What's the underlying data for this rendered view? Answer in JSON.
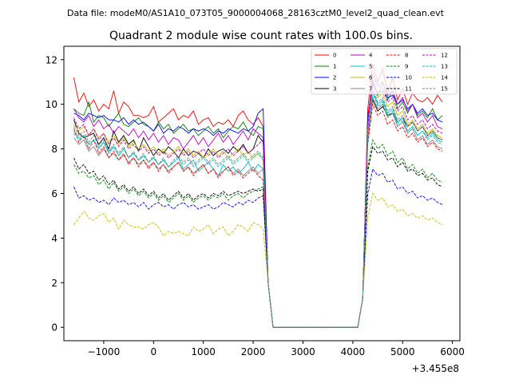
{
  "header": {
    "suptitle": "Data file: modeM0/AS1A10_073T05_9000004068_28163cztM0_level2_quad_clean.evt"
  },
  "chart_data": {
    "type": "line",
    "title": "Quadrant 2 module wise count rates with 100.0s bins.",
    "xlabel": "",
    "ylabel": "",
    "x_offset_label": "+3.455e8",
    "xlim": [
      -1800,
      6150
    ],
    "ylim": [
      -0.6,
      12.6
    ],
    "xticks": [
      -1000,
      0,
      1000,
      2000,
      3000,
      4000,
      5000,
      6000
    ],
    "xtick_labels": [
      "−1000",
      "0",
      "1000",
      "2000",
      "3000",
      "4000",
      "5000",
      "6000"
    ],
    "yticks": [
      0,
      2,
      4,
      6,
      8,
      10,
      12
    ],
    "ytick_labels": [
      "0",
      "2",
      "4",
      "6",
      "8",
      "10",
      "12"
    ],
    "legend_position": "top-right",
    "x_start": -1600,
    "x_step": 100,
    "n_points": 75,
    "gap": {
      "start_index": 40,
      "end_index": 58,
      "value": 0
    },
    "transition_values": {
      "index_39": 2.0,
      "index_58": 1.3
    },
    "series": [
      {
        "name": "0",
        "color": "#ff0000",
        "dash": "solid",
        "seg1": [
          11.2,
          10.1,
          10.5,
          9.9,
          10.2,
          9.7,
          10.0,
          9.8,
          10.6,
          9.6,
          10.1,
          9.9,
          9.5,
          9.5,
          9.4,
          9.5,
          9.9,
          9.2,
          9.4,
          9.6,
          9.8,
          9.3,
          9.5,
          9.4,
          9.7,
          9.1,
          9.3,
          9.4,
          9.0,
          9.2,
          9.1,
          9.3,
          9.0,
          9.5,
          9.7,
          9.3,
          9.1,
          9.4,
          9.0
        ],
        "seg2": [
          9.8,
          11.8,
          11.0,
          11.6,
          10.5,
          11.2,
          10.2,
          10.7,
          10.0,
          10.5,
          10.2,
          10.1,
          10.3,
          10.0,
          10.4,
          10.1
        ]
      },
      {
        "name": "1",
        "color": "#008000",
        "dash": "solid",
        "seg1": [
          9.8,
          9.6,
          9.5,
          10.1,
          9.2,
          9.5,
          9.4,
          9.0,
          9.3,
          9.6,
          9.1,
          9.0,
          9.2,
          9.4,
          9.1,
          9.0,
          8.8,
          9.2,
          8.9,
          9.1,
          8.7,
          8.9,
          9.1,
          8.8,
          8.9,
          8.6,
          8.8,
          9.0,
          8.7,
          8.9,
          8.5,
          8.8,
          9.0,
          8.9,
          9.2,
          8.8,
          8.6,
          9.0,
          8.9
        ],
        "seg2": [
          9.4,
          11.1,
          10.4,
          11.0,
          10.2,
          10.6,
          9.8,
          10.1,
          9.6,
          10.0,
          9.5,
          9.7,
          9.4,
          9.8,
          9.3,
          9.5
        ]
      },
      {
        "name": "2",
        "color": "#0000ff",
        "dash": "solid",
        "seg1": [
          9.6,
          9.5,
          9.3,
          9.6,
          9.5,
          9.4,
          9.5,
          9.3,
          9.3,
          9.2,
          9.4,
          9.1,
          9.3,
          9.1,
          9.2,
          9.0,
          8.8,
          9.1,
          8.7,
          8.9,
          8.8,
          9.0,
          8.9,
          8.7,
          8.9,
          8.8,
          8.9,
          8.8,
          8.6,
          8.8,
          8.7,
          8.9,
          8.8,
          8.7,
          8.9,
          8.8,
          9.0,
          9.6,
          9.8
        ],
        "seg2": [
          9.5,
          10.9,
          10.5,
          10.6,
          10.3,
          10.4,
          10.0,
          10.2,
          9.8,
          10.0,
          9.6,
          9.8,
          9.5,
          9.6,
          9.3,
          9.2
        ]
      },
      {
        "name": "3",
        "color": "#000000",
        "dash": "solid",
        "seg1": [
          9.3,
          8.7,
          8.5,
          8.6,
          8.7,
          8.2,
          8.5,
          8.0,
          8.8,
          8.3,
          8.6,
          8.2,
          8.4,
          7.9,
          8.5,
          8.1,
          7.7,
          8.0,
          7.8,
          8.1,
          7.9,
          7.6,
          8.0,
          7.7,
          7.9,
          7.8,
          7.6,
          8.0,
          7.7,
          7.9,
          8.0,
          7.8,
          8.1,
          7.9,
          8.2,
          7.8,
          8.0,
          8.6,
          8.3
        ],
        "seg2": [
          8.8,
          10.2,
          9.7,
          9.9,
          9.5,
          9.6,
          9.2,
          9.4,
          9.0,
          9.2,
          8.8,
          9.0,
          8.6,
          8.8,
          8.5,
          8.4
        ]
      },
      {
        "name": "4",
        "color": "#bf00bf",
        "dash": "solid",
        "seg1": [
          9.8,
          9.4,
          9.2,
          9.5,
          9.0,
          9.3,
          8.9,
          9.1,
          8.7,
          9.0,
          8.8,
          8.6,
          8.9,
          8.5,
          8.8,
          8.4,
          8.7,
          8.3,
          8.6,
          8.2,
          8.5,
          8.4,
          8.0,
          8.3,
          8.6,
          8.2,
          8.5,
          8.1,
          8.4,
          8.7,
          8.3,
          8.6,
          8.2,
          8.5,
          8.8,
          8.4,
          8.9,
          8.7,
          8.5
        ],
        "seg2": [
          9.2,
          11.4,
          10.8,
          11.0,
          10.4,
          10.6,
          10.0,
          10.3,
          9.7,
          10.0,
          9.4,
          9.6,
          9.2,
          9.5,
          9.0,
          8.9
        ]
      },
      {
        "name": "5",
        "color": "#00bfbf",
        "dash": "solid",
        "seg1": [
          8.8,
          8.5,
          8.6,
          8.2,
          8.4,
          8.0,
          8.3,
          7.8,
          8.1,
          7.7,
          8.0,
          7.6,
          7.8,
          7.5,
          7.7,
          7.4,
          7.6,
          7.3,
          7.5,
          7.2,
          7.4,
          7.6,
          7.1,
          7.3,
          7.5,
          7.0,
          7.2,
          7.4,
          7.1,
          6.8,
          7.3,
          7.0,
          7.2,
          6.9,
          7.1,
          7.4,
          7.0,
          7.3,
          7.1
        ],
        "seg2": [
          8.6,
          10.6,
          10.0,
          10.2,
          9.6,
          9.8,
          9.2,
          9.4,
          8.8,
          9.0,
          8.6,
          8.8,
          8.5,
          8.7,
          8.4,
          8.3
        ]
      },
      {
        "name": "6",
        "color": "#bfbf00",
        "dash": "solid",
        "seg1": [
          9.1,
          8.8,
          9.0,
          8.6,
          8.9,
          8.5,
          8.7,
          8.3,
          8.6,
          8.2,
          8.5,
          8.1,
          8.3,
          8.0,
          8.2,
          7.9,
          8.1,
          7.8,
          8.0,
          7.7,
          7.9,
          8.1,
          7.8,
          8.0,
          7.7,
          7.9,
          7.6,
          7.8,
          8.0,
          7.7,
          7.9,
          7.6,
          7.8,
          8.0,
          7.7,
          7.9,
          7.6,
          7.8,
          7.5
        ],
        "seg2": [
          8.9,
          10.8,
          10.3,
          10.5,
          9.9,
          10.1,
          9.5,
          9.7,
          9.1,
          9.3,
          8.9,
          9.1,
          8.7,
          8.9,
          8.6,
          8.5
        ]
      },
      {
        "name": "7",
        "color": "#808080",
        "dash": "solid",
        "seg1": [
          8.5,
          8.2,
          8.4,
          7.9,
          8.1,
          7.7,
          8.0,
          7.6,
          7.8,
          7.5,
          7.7,
          7.4,
          7.6,
          7.3,
          7.5,
          7.2,
          7.4,
          7.1,
          7.3,
          7.0,
          7.2,
          7.4,
          7.0,
          7.2,
          6.9,
          7.1,
          7.3,
          6.9,
          7.1,
          6.8,
          7.0,
          7.2,
          6.9,
          7.1,
          6.8,
          7.0,
          7.2,
          6.9,
          7.1
        ],
        "seg2": [
          8.3,
          10.3,
          9.8,
          10.0,
          9.4,
          9.6,
          9.0,
          9.2,
          8.7,
          8.9,
          8.4,
          8.6,
          8.2,
          8.4,
          8.1,
          8.0
        ]
      },
      {
        "name": "8",
        "color": "#ff0000",
        "dash": "dashed",
        "seg1": [
          8.9,
          8.3,
          8.6,
          8.0,
          8.4,
          7.8,
          8.1,
          7.6,
          7.9,
          7.5,
          7.8,
          7.3,
          7.6,
          7.2,
          7.5,
          7.1,
          7.4,
          7.0,
          7.3,
          6.9,
          7.2,
          7.4,
          7.0,
          7.2,
          6.8,
          7.1,
          7.3,
          6.9,
          7.1,
          6.7,
          7.0,
          7.2,
          6.8,
          7.0,
          6.7,
          6.9,
          7.1,
          6.8,
          6.6
        ],
        "seg2": [
          8.2,
          10.0,
          9.5,
          9.7,
          9.1,
          9.3,
          8.8,
          9.0,
          8.5,
          8.7,
          8.3,
          8.5,
          8.1,
          8.3,
          8.0,
          7.9
        ]
      },
      {
        "name": "9",
        "color": "#008000",
        "dash": "dashed",
        "seg1": [
          7.3,
          6.9,
          7.0,
          6.7,
          6.8,
          6.4,
          6.6,
          6.2,
          6.5,
          6.1,
          6.3,
          6.0,
          6.2,
          5.9,
          6.1,
          5.8,
          6.0,
          5.7,
          5.9,
          5.6,
          5.8,
          6.0,
          5.7,
          5.9,
          5.6,
          5.8,
          5.9,
          5.7,
          5.9,
          5.8,
          6.0,
          5.7,
          5.9,
          6.0,
          5.8,
          6.0,
          6.1,
          6.2,
          6.3
        ],
        "seg2": [
          7.2,
          8.4,
          8.0,
          8.2,
          7.7,
          7.9,
          7.4,
          7.6,
          7.1,
          7.3,
          6.9,
          7.1,
          6.7,
          6.9,
          6.6,
          6.5
        ]
      },
      {
        "name": "10",
        "color": "#0000ff",
        "dash": "dashed",
        "seg1": [
          6.3,
          5.8,
          5.9,
          5.7,
          5.8,
          5.6,
          5.7,
          5.5,
          5.8,
          5.6,
          5.7,
          5.5,
          5.6,
          5.4,
          5.6,
          5.3,
          5.5,
          5.6,
          5.4,
          5.5,
          5.3,
          5.5,
          5.6,
          5.4,
          5.5,
          5.3,
          5.4,
          5.5,
          5.3,
          5.4,
          5.6,
          5.5,
          5.4,
          5.6,
          5.5,
          5.7,
          5.6,
          5.8,
          5.9
        ],
        "seg2": [
          6.0,
          7.1,
          6.8,
          6.9,
          6.5,
          6.6,
          6.2,
          6.3,
          6.0,
          6.1,
          5.8,
          5.9,
          5.7,
          5.8,
          5.6,
          5.5
        ]
      },
      {
        "name": "11",
        "color": "#000000",
        "dash": "dashed",
        "seg1": [
          7.6,
          7.1,
          7.3,
          6.9,
          7.0,
          6.6,
          6.8,
          6.4,
          6.6,
          6.2,
          6.4,
          6.1,
          6.3,
          6.0,
          6.2,
          5.9,
          6.1,
          5.8,
          6.0,
          5.7,
          5.9,
          6.1,
          5.8,
          6.0,
          5.7,
          5.9,
          6.0,
          5.8,
          6.0,
          5.9,
          6.1,
          5.9,
          6.0,
          6.1,
          6.0,
          6.1,
          6.2,
          6.1,
          6.2
        ],
        "seg2": [
          7.0,
          8.1,
          7.8,
          7.9,
          7.5,
          7.6,
          7.2,
          7.4,
          7.0,
          7.1,
          6.8,
          6.9,
          6.6,
          6.7,
          6.4,
          6.3
        ]
      },
      {
        "name": "12",
        "color": "#bf00bf",
        "dash": "dashed",
        "seg1": [
          9.4,
          8.9,
          9.1,
          8.6,
          8.9,
          8.4,
          8.7,
          8.2,
          8.5,
          8.1,
          8.4,
          8.0,
          8.2,
          7.9,
          8.1,
          7.8,
          8.0,
          7.7,
          7.9,
          7.6,
          7.8,
          8.0,
          7.7,
          7.9,
          7.6,
          7.8,
          8.0,
          7.7,
          7.9,
          7.6,
          7.8,
          8.0,
          7.7,
          7.9,
          8.1,
          7.8,
          8.0,
          8.2,
          8.4
        ],
        "seg2": [
          9.0,
          11.0,
          10.5,
          10.7,
          10.1,
          10.3,
          9.7,
          9.9,
          9.3,
          9.5,
          9.1,
          9.3,
          8.9,
          9.1,
          8.8,
          8.7
        ]
      },
      {
        "name": "13",
        "color": "#00bfbf",
        "dash": "dashed",
        "seg1": [
          8.7,
          8.4,
          8.6,
          8.2,
          8.4,
          8.0,
          8.3,
          7.9,
          8.1,
          7.7,
          8.0,
          7.6,
          7.8,
          7.5,
          7.7,
          7.4,
          7.6,
          7.3,
          7.5,
          7.2,
          7.4,
          7.6,
          7.3,
          7.5,
          7.2,
          7.4,
          7.6,
          7.3,
          7.5,
          7.2,
          7.4,
          7.6,
          7.3,
          7.5,
          7.7,
          7.4,
          7.6,
          7.8,
          7.5
        ],
        "seg2": [
          8.5,
          10.5,
          9.9,
          10.1,
          9.5,
          9.7,
          9.1,
          9.3,
          8.8,
          9.0,
          8.6,
          8.8,
          8.4,
          8.6,
          8.3,
          8.2
        ]
      },
      {
        "name": "14",
        "color": "#bfbf00",
        "dash": "dashed",
        "seg1": [
          4.6,
          4.9,
          5.2,
          4.9,
          4.8,
          5.0,
          5.1,
          4.7,
          4.9,
          4.4,
          4.8,
          4.6,
          4.5,
          4.5,
          4.4,
          4.6,
          4.7,
          4.5,
          4.1,
          4.3,
          4.2,
          4.3,
          4.2,
          4.1,
          4.5,
          4.3,
          4.4,
          4.6,
          4.2,
          4.4,
          4.5,
          4.1,
          4.3,
          4.6,
          4.5,
          4.3,
          4.7,
          4.6,
          4.4
        ],
        "seg2": [
          4.9,
          6.0,
          5.7,
          5.8,
          5.4,
          5.5,
          5.2,
          5.3,
          5.0,
          5.1,
          4.9,
          5.0,
          4.8,
          4.9,
          4.7,
          4.6
        ]
      },
      {
        "name": "15",
        "color": "#808080",
        "dash": "dashed",
        "seg1": [
          9.0,
          8.6,
          8.8,
          8.3,
          8.6,
          8.1,
          8.4,
          7.9,
          8.2,
          7.8,
          8.1,
          7.6,
          7.9,
          7.5,
          7.8,
          7.4,
          7.7,
          7.3,
          7.6,
          7.2,
          7.5,
          7.7,
          7.4,
          7.6,
          7.3,
          7.5,
          7.7,
          7.4,
          7.6,
          7.3,
          7.5,
          7.7,
          7.4,
          7.6,
          7.8,
          7.5,
          7.7,
          7.9,
          7.6
        ],
        "seg2": [
          8.7,
          10.7,
          10.1,
          10.3,
          9.7,
          9.9,
          9.3,
          9.5,
          9.0,
          9.2,
          8.8,
          9.0,
          8.6,
          8.8,
          8.5,
          8.4
        ]
      }
    ]
  }
}
